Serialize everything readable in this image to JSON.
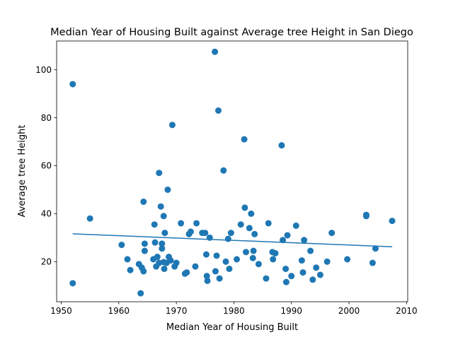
{
  "chart_data": {
    "type": "scatter",
    "title": "Median Year of Housing Built against Average tree Height in San Diego",
    "xlabel": "Median Year of Housing Built",
    "ylabel": "Average tree Height",
    "xlim": [
      1949.2,
      2010.2
    ],
    "ylim": [
      3.3,
      112.0
    ],
    "xticks": [
      1950,
      1960,
      1970,
      1980,
      1990,
      2000,
      2010
    ],
    "xtick_labels": [
      "1950",
      "1960",
      "1970",
      "1980",
      "1990",
      "2000",
      "2010"
    ],
    "yticks": [
      20,
      40,
      60,
      80,
      100
    ],
    "ytick_labels": [
      "20",
      "40",
      "60",
      "80",
      "100"
    ],
    "grid": false,
    "legend": "none",
    "point_color": "#1f77b4",
    "line_color": "#1f77b4",
    "points": [
      [
        1952.0,
        94.0
      ],
      [
        1952.0,
        11.0
      ],
      [
        1955.0,
        38.0
      ],
      [
        1960.5,
        27.0
      ],
      [
        1961.5,
        21.0
      ],
      [
        1962.0,
        16.5
      ],
      [
        1963.5,
        19.0
      ],
      [
        1963.8,
        6.8
      ],
      [
        1964.0,
        17.5
      ],
      [
        1964.3,
        16.0
      ],
      [
        1964.3,
        45.0
      ],
      [
        1964.5,
        24.5
      ],
      [
        1964.5,
        27.5
      ],
      [
        1966.0,
        21.0
      ],
      [
        1966.2,
        35.5
      ],
      [
        1966.3,
        28.0
      ],
      [
        1966.5,
        18.0
      ],
      [
        1966.7,
        22.0
      ],
      [
        1967.0,
        57.0
      ],
      [
        1967.0,
        19.5
      ],
      [
        1967.3,
        43.0
      ],
      [
        1967.5,
        25.5
      ],
      [
        1967.5,
        27.5
      ],
      [
        1967.8,
        39.0
      ],
      [
        1967.8,
        19.8
      ],
      [
        1967.9,
        17.0
      ],
      [
        1968.0,
        32.0
      ],
      [
        1968.3,
        19.5
      ],
      [
        1968.5,
        50.0
      ],
      [
        1968.7,
        22.0
      ],
      [
        1969.0,
        20.5
      ],
      [
        1969.3,
        77.0
      ],
      [
        1969.7,
        18.0
      ],
      [
        1970.0,
        19.5
      ],
      [
        1970.8,
        36.0
      ],
      [
        1971.5,
        15.0
      ],
      [
        1971.8,
        15.5
      ],
      [
        1972.2,
        31.5
      ],
      [
        1972.5,
        32.5
      ],
      [
        1973.3,
        18.0
      ],
      [
        1973.5,
        36.0
      ],
      [
        1974.5,
        32.0
      ],
      [
        1975.0,
        32.0
      ],
      [
        1975.2,
        23.0
      ],
      [
        1975.3,
        14.0
      ],
      [
        1975.4,
        12.0
      ],
      [
        1975.8,
        30.0
      ],
      [
        1976.7,
        107.5
      ],
      [
        1976.8,
        16.0
      ],
      [
        1977.0,
        22.5
      ],
      [
        1977.3,
        83.0
      ],
      [
        1977.5,
        13.0
      ],
      [
        1978.2,
        58.0
      ],
      [
        1978.6,
        20.0
      ],
      [
        1979.0,
        29.5
      ],
      [
        1979.2,
        17.0
      ],
      [
        1979.5,
        32.0
      ],
      [
        1980.5,
        21.0
      ],
      [
        1981.2,
        35.5
      ],
      [
        1981.8,
        71.0
      ],
      [
        1981.9,
        42.5
      ],
      [
        1982.1,
        24.0
      ],
      [
        1982.7,
        34.0
      ],
      [
        1983.0,
        40.0
      ],
      [
        1983.3,
        21.5
      ],
      [
        1983.4,
        24.5
      ],
      [
        1983.6,
        31.5
      ],
      [
        1984.3,
        19.0
      ],
      [
        1985.6,
        13.0
      ],
      [
        1986.0,
        36.0
      ],
      [
        1986.7,
        24.0
      ],
      [
        1986.8,
        21.0
      ],
      [
        1987.2,
        23.5
      ],
      [
        1988.3,
        68.5
      ],
      [
        1988.5,
        29.0
      ],
      [
        1989.0,
        17.0
      ],
      [
        1989.1,
        11.5
      ],
      [
        1989.3,
        31.0
      ],
      [
        1990.0,
        14.0
      ],
      [
        1990.8,
        35.0
      ],
      [
        1991.8,
        20.5
      ],
      [
        1992.0,
        15.5
      ],
      [
        1992.2,
        29.0
      ],
      [
        1993.3,
        24.5
      ],
      [
        1993.7,
        12.5
      ],
      [
        1994.3,
        17.5
      ],
      [
        1995.0,
        14.5
      ],
      [
        1996.2,
        20.0
      ],
      [
        1997.0,
        32.0
      ],
      [
        1999.7,
        21.0
      ],
      [
        2003.0,
        39.0
      ],
      [
        2003.0,
        39.5
      ],
      [
        2004.1,
        19.5
      ],
      [
        2004.6,
        25.5
      ],
      [
        2007.5,
        37.0
      ]
    ],
    "trend_line": {
      "x": [
        1952.0,
        2007.5
      ],
      "y": [
        31.6,
        26.2
      ]
    }
  }
}
